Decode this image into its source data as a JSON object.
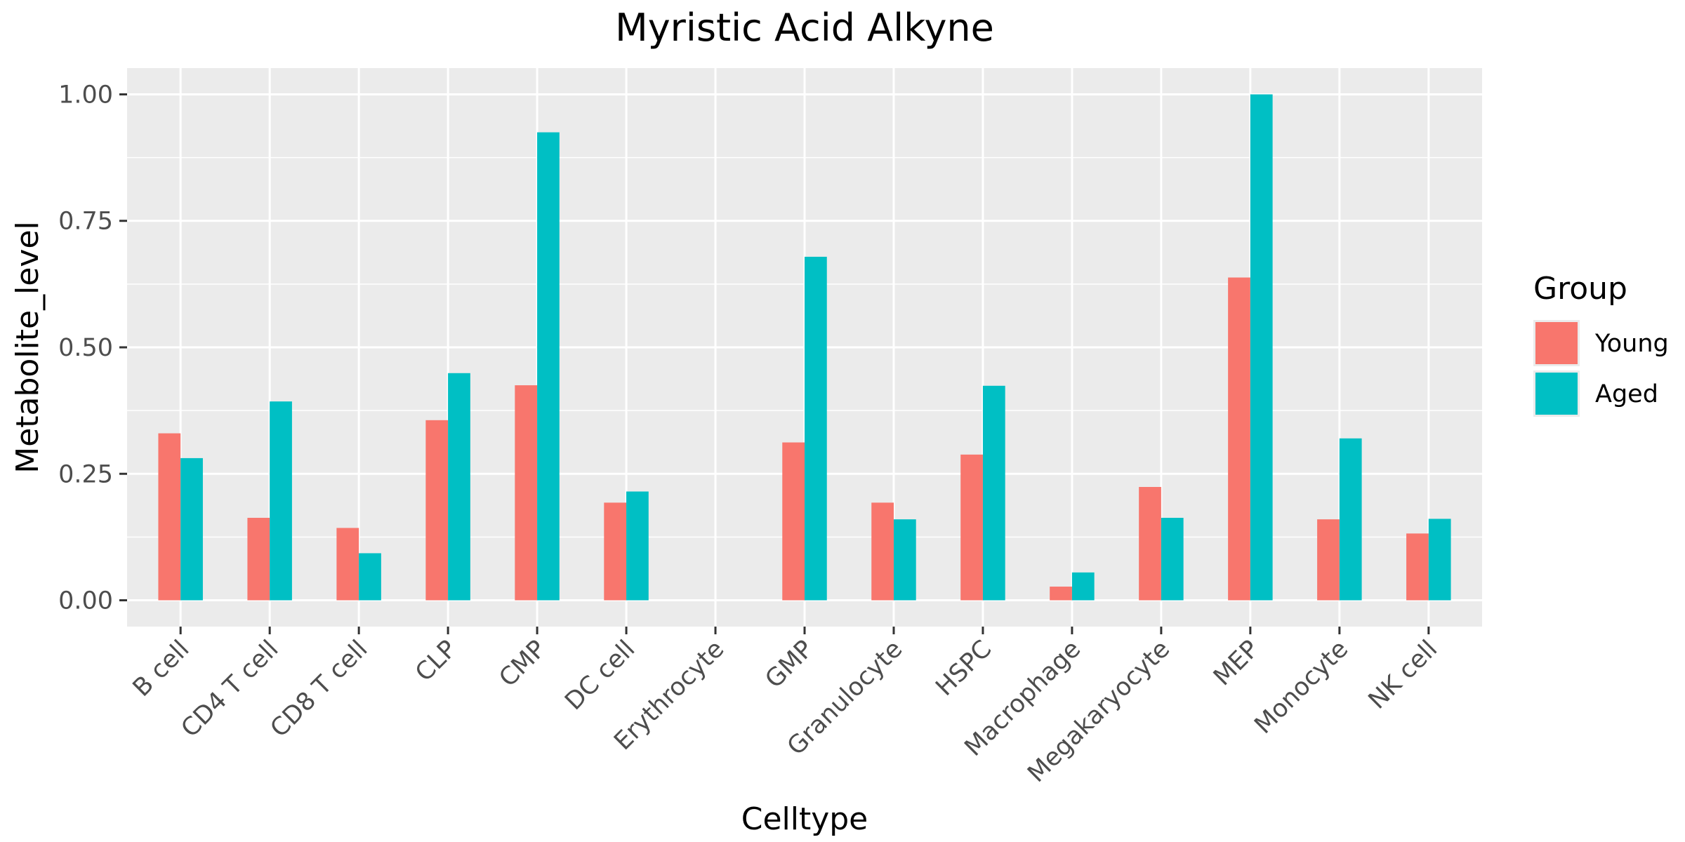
{
  "chart_data": {
    "type": "bar",
    "title": "Myristic Acid Alkyne",
    "xlabel": "Celltype",
    "ylabel": "Metabolite_level",
    "categories": [
      "B cell",
      "CD4 T cell",
      "CD8 T cell",
      "CLP",
      "CMP",
      "DC cell",
      "Erythrocyte",
      "GMP",
      "Granulocyte",
      "HSPC",
      "Macrophage",
      "Megakaryocyte",
      "MEP",
      "Monocyte",
      "NK cell"
    ],
    "series": [
      {
        "name": "Young",
        "color": "#F8766D",
        "values": [
          0.33,
          0.163,
          0.143,
          0.356,
          0.425,
          0.193,
          0.0,
          0.312,
          0.193,
          0.288,
          0.027,
          0.224,
          0.638,
          0.16,
          0.132
        ]
      },
      {
        "name": "Aged",
        "color": "#00BFC4",
        "values": [
          0.281,
          0.393,
          0.093,
          0.449,
          0.925,
          0.215,
          0.0,
          0.679,
          0.16,
          0.424,
          0.055,
          0.163,
          1.0,
          0.32,
          0.161
        ]
      }
    ],
    "ylim": [
      -0.052,
      1.052
    ],
    "yticks": [
      0.0,
      0.25,
      0.5,
      0.75,
      1.0
    ],
    "ytick_labels": [
      "0.00",
      "0.25",
      "0.50",
      "0.75",
      "1.00"
    ],
    "legend": {
      "title": "Group",
      "position": "right"
    },
    "grid": true,
    "panel_background": "#EBEBEB",
    "grid_color": "#FFFFFF"
  }
}
